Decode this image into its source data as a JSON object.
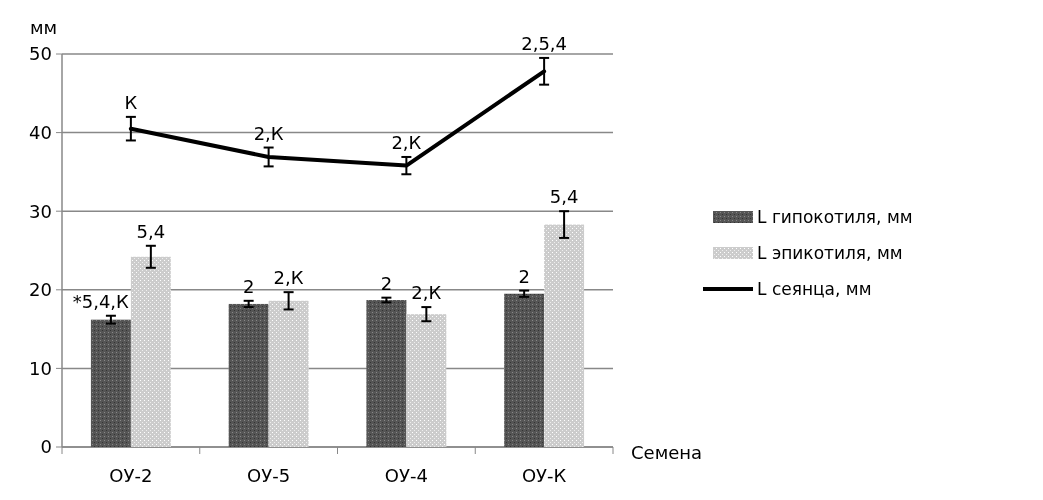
{
  "chart_data": {
    "type": "bar",
    "ylabel": "мм",
    "xlabel": "Семена",
    "categories": [
      "ОУ-2",
      "ОУ-5",
      "ОУ-4",
      "ОУ-К"
    ],
    "series": [
      {
        "name": "L гипокотиля, мм",
        "color": "#555555",
        "values": [
          16.2,
          18.2,
          18.7,
          19.5
        ],
        "errors": [
          0.5,
          0.4,
          0.3,
          0.4
        ]
      },
      {
        "name": "L эпикотиля, мм",
        "color": "#cccccc",
        "values": [
          24.2,
          18.6,
          16.9,
          28.3
        ],
        "errors": [
          1.4,
          1.1,
          0.9,
          1.7
        ]
      },
      {
        "name": "L сеянца, мм",
        "type": "line",
        "color": "#000000",
        "values": [
          40.5,
          36.9,
          35.8,
          47.8
        ],
        "errors": [
          1.5,
          1.2,
          1.1,
          1.7
        ]
      }
    ],
    "annotations": [
      {
        "text": "*5,4,К",
        "x": "ОУ-2",
        "y": 16.2
      },
      {
        "text": "2",
        "x": "ОУ-5",
        "y": 18.2
      },
      {
        "text": "2",
        "x": "ОУ-4",
        "y": 18.7
      },
      {
        "text": "2",
        "x": "ОУ-К",
        "y": 19.5
      },
      {
        "text": "5,4",
        "x": "ОУ-2",
        "y": 24.2
      },
      {
        "text": "2,К",
        "x": "ОУ-5",
        "y": 18.6
      },
      {
        "text": "2,К",
        "x": "ОУ-4",
        "y": 16.9
      },
      {
        "text": "5,4",
        "x": "ОУ-К",
        "y": 28.3
      },
      {
        "text": "К",
        "x": "ОУ-2",
        "y": 40.5
      },
      {
        "text": "2,К",
        "x": "ОУ-5",
        "y": 36.9
      },
      {
        "text": "2,К",
        "x": "ОУ-4",
        "y": 35.8
      },
      {
        "text": "2,5,4",
        "x": "ОУ-К",
        "y": 47.8
      }
    ],
    "ylim": [
      0,
      50
    ],
    "yticks": [
      0,
      10,
      20,
      30,
      40,
      50
    ],
    "grid": "y",
    "legend": "right",
    "marker": "none"
  }
}
